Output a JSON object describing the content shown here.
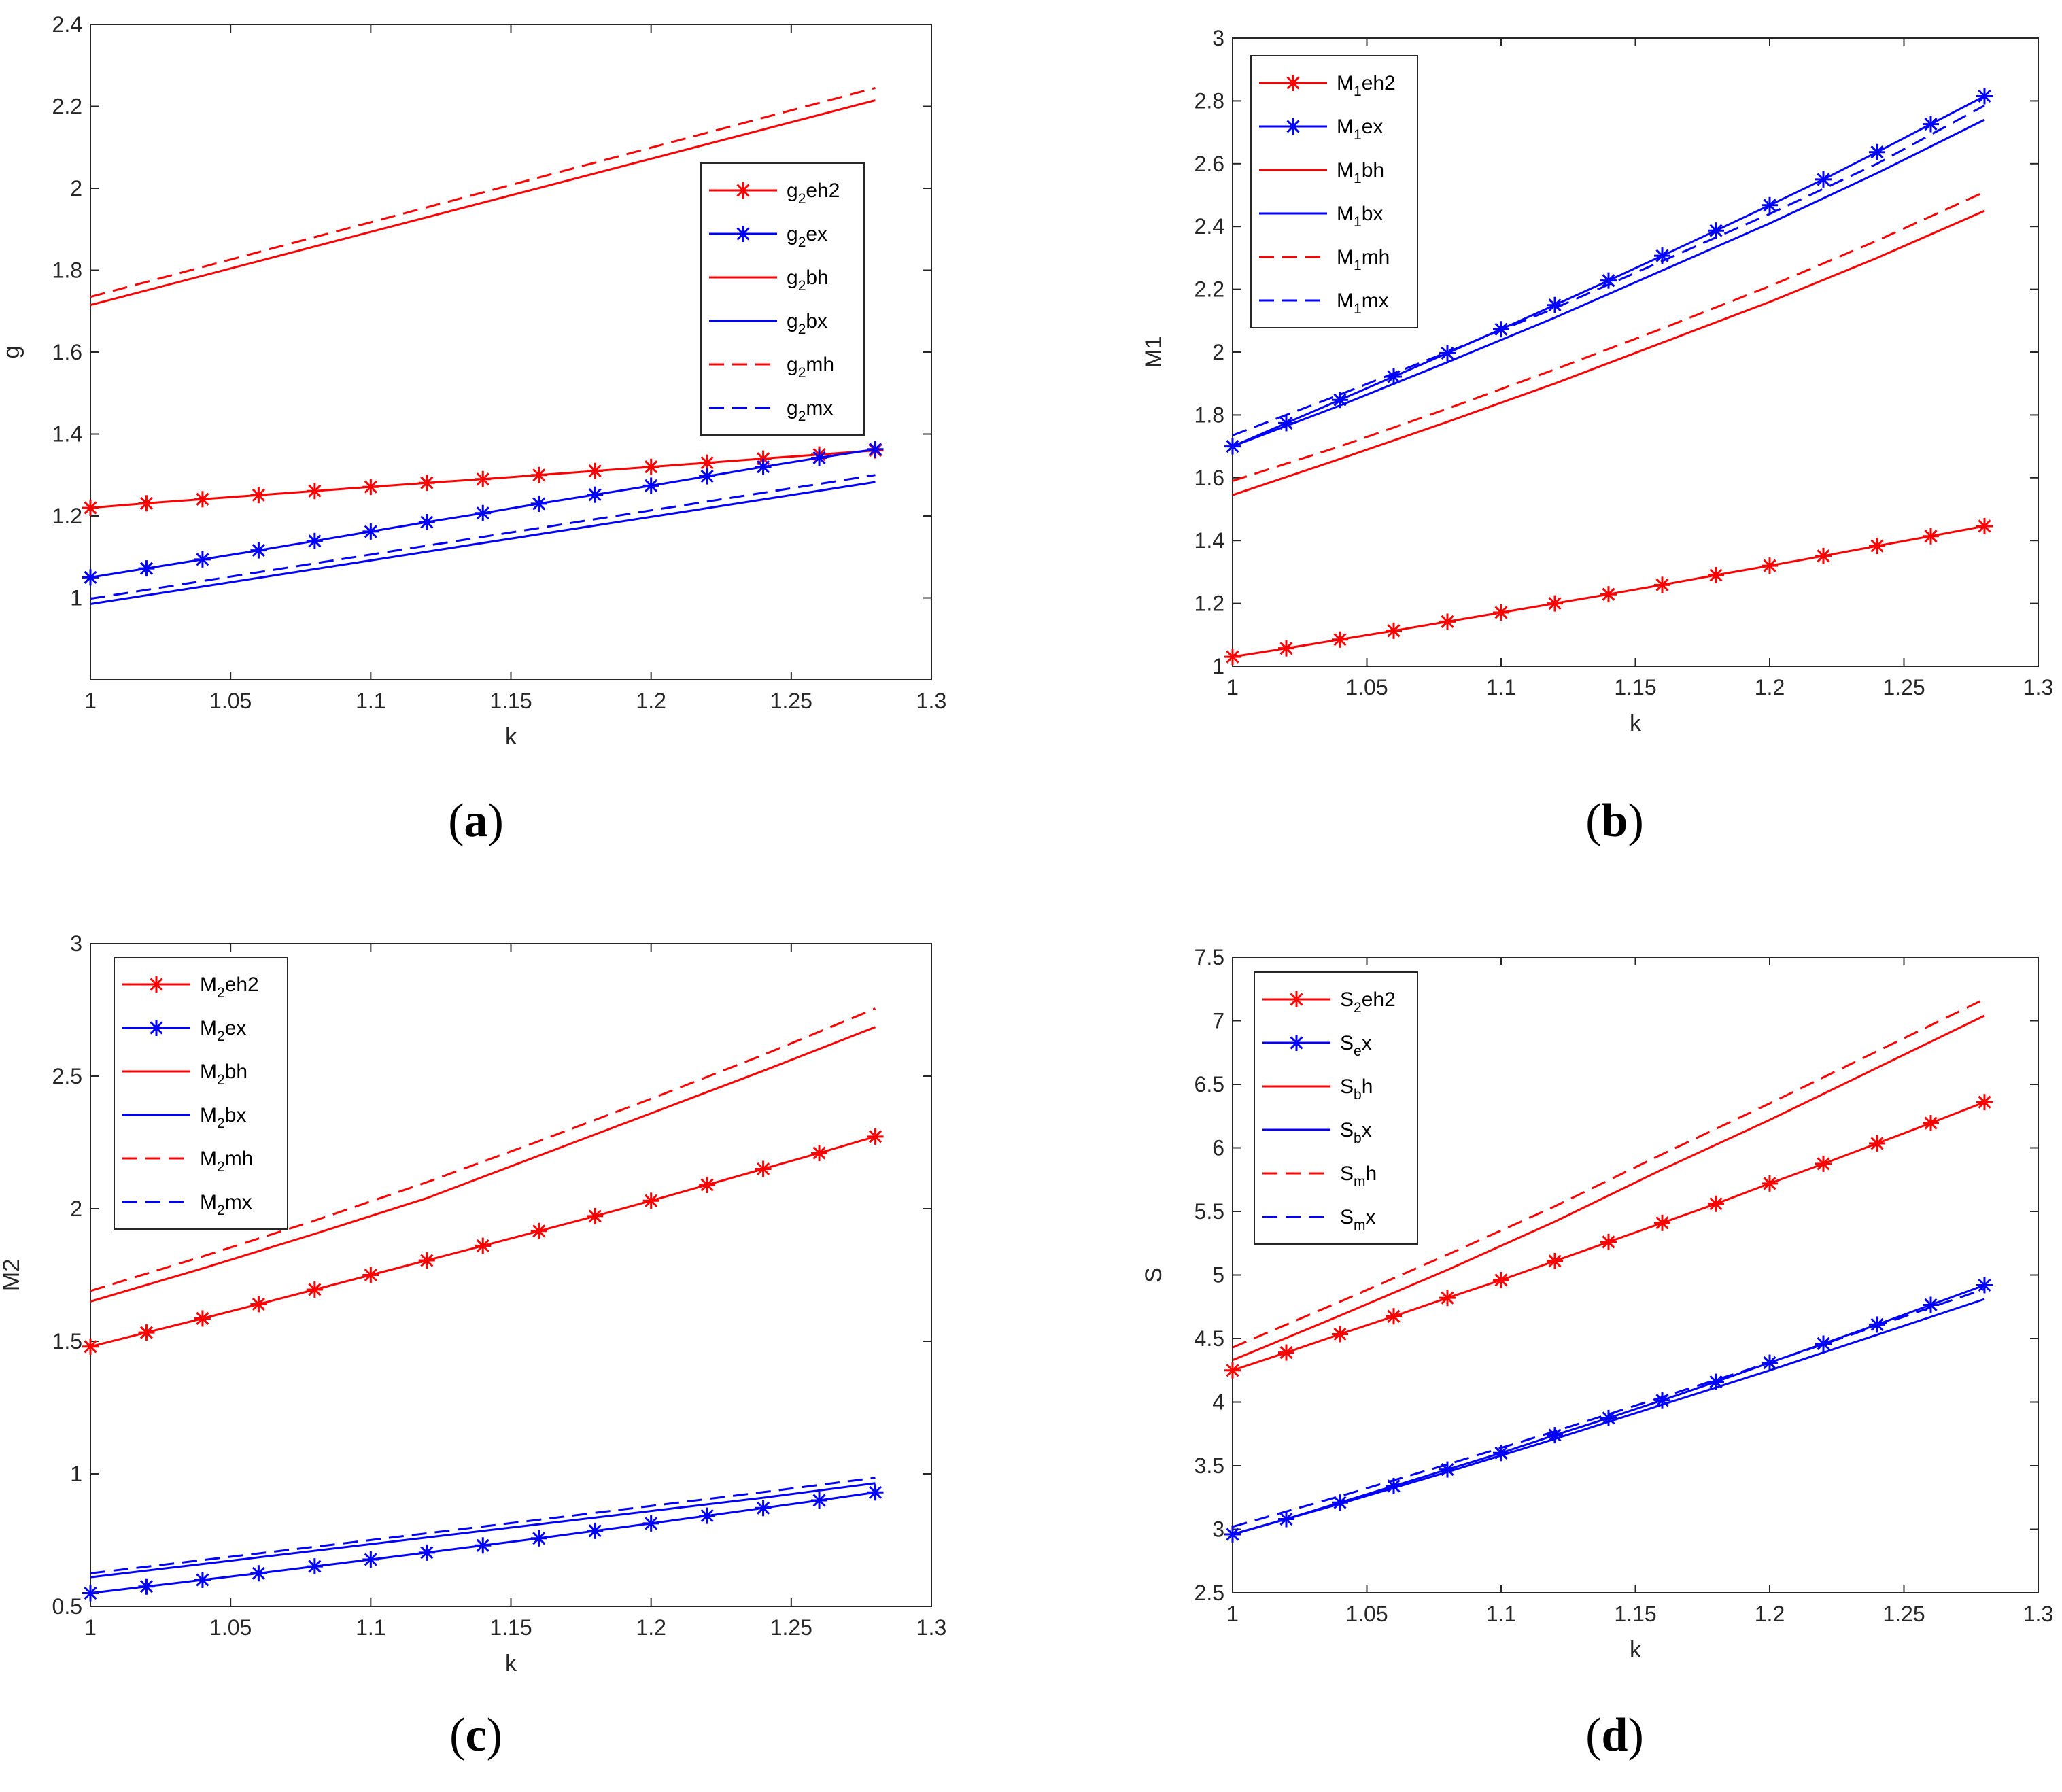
{
  "colors": {
    "red": "#ff0000",
    "blue": "#0000ff",
    "axis": "#262626"
  },
  "chart_data": [
    {
      "panel": "(a)",
      "caption": {
        "open": "(",
        "letter": "a",
        "close": ")"
      },
      "type": "line",
      "xlabel": "k",
      "ylabel": "g",
      "xlim": [
        1,
        1.3
      ],
      "ylim": [
        0.8,
        2.4
      ],
      "xticks": [
        1,
        1.05,
        1.1,
        1.15,
        1.2,
        1.25,
        1.3
      ],
      "xtick_labels": [
        "1",
        "1.05",
        "1.1",
        "1.15",
        "1.2",
        "1.25",
        "1.3"
      ],
      "yticks": [
        1,
        1.2,
        1.4,
        1.6,
        1.8,
        2,
        2.2,
        2.4
      ],
      "ytick_labels": [
        "1",
        "1.2",
        "1.4",
        "1.6",
        "1.8",
        "2",
        "2.2",
        "2.4"
      ],
      "legend_position": "center-right",
      "series": [
        {
          "name": "g2eh2",
          "legend": {
            "base": "g",
            "sub": "2",
            "suffix": "eh2"
          },
          "color": "red",
          "dash": "solid",
          "marker": "asterisk",
          "x": [
            1,
            1.02,
            1.04,
            1.06,
            1.08,
            1.1,
            1.12,
            1.14,
            1.16,
            1.18,
            1.2,
            1.22,
            1.24,
            1.26,
            1.28
          ],
          "y": [
            1.22,
            1.231,
            1.241,
            1.251,
            1.261,
            1.271,
            1.281,
            1.29,
            1.3,
            1.31,
            1.32,
            1.33,
            1.34,
            1.35,
            1.36
          ]
        },
        {
          "name": "g2ex",
          "legend": {
            "base": "g",
            "sub": "2",
            "suffix": "ex"
          },
          "color": "blue",
          "dash": "solid",
          "marker": "asterisk",
          "x": [
            1,
            1.02,
            1.04,
            1.06,
            1.08,
            1.1,
            1.12,
            1.14,
            1.16,
            1.18,
            1.2,
            1.22,
            1.24,
            1.26,
            1.28
          ],
          "y": [
            1.05,
            1.072,
            1.094,
            1.116,
            1.139,
            1.162,
            1.185,
            1.207,
            1.23,
            1.252,
            1.274,
            1.297,
            1.32,
            1.342,
            1.363
          ]
        },
        {
          "name": "g2bh",
          "legend": {
            "base": "g",
            "sub": "2",
            "suffix": "bh"
          },
          "color": "red",
          "dash": "solid",
          "marker": "none",
          "x": [
            1,
            1.28
          ],
          "y": [
            1.715,
            2.215
          ]
        },
        {
          "name": "g2bx",
          "legend": {
            "base": "g",
            "sub": "2",
            "suffix": "bx"
          },
          "color": "blue",
          "dash": "solid",
          "marker": "none",
          "x": [
            1,
            1.28
          ],
          "y": [
            0.985,
            1.283
          ]
        },
        {
          "name": "g2mh",
          "legend": {
            "base": "g",
            "sub": "2",
            "suffix": "mh"
          },
          "color": "red",
          "dash": "dashed",
          "marker": "none",
          "x": [
            1,
            1.28
          ],
          "y": [
            1.735,
            2.245
          ]
        },
        {
          "name": "g2mx",
          "legend": {
            "base": "g",
            "sub": "2",
            "suffix": "mx"
          },
          "color": "blue",
          "dash": "dashed",
          "marker": "none",
          "x": [
            1,
            1.28
          ],
          "y": [
            0.998,
            1.3
          ]
        }
      ]
    },
    {
      "panel": "(b)",
      "caption": {
        "open": "(",
        "letter": "b",
        "close": ")"
      },
      "type": "line",
      "xlabel": "k",
      "ylabel": "M1",
      "xlim": [
        1,
        1.3
      ],
      "ylim": [
        1,
        3
      ],
      "xticks": [
        1,
        1.05,
        1.1,
        1.15,
        1.2,
        1.25,
        1.3
      ],
      "xtick_labels": [
        "1",
        "1.05",
        "1.1",
        "1.15",
        "1.2",
        "1.25",
        "1.3"
      ],
      "yticks": [
        1,
        1.2,
        1.4,
        1.6,
        1.8,
        2,
        2.2,
        2.4,
        2.6,
        2.8,
        3
      ],
      "ytick_labels": [
        "1",
        "1.2",
        "1.4",
        "1.6",
        "1.8",
        "2",
        "2.2",
        "2.4",
        "2.6",
        "2.8",
        "3"
      ],
      "legend_position": "top-left",
      "series": [
        {
          "name": "M1eh2",
          "legend": {
            "base": "M",
            "sub": "1",
            "suffix": "eh2"
          },
          "color": "red",
          "dash": "solid",
          "marker": "asterisk",
          "x": [
            1,
            1.02,
            1.04,
            1.06,
            1.08,
            1.1,
            1.12,
            1.14,
            1.16,
            1.18,
            1.2,
            1.22,
            1.24,
            1.26,
            1.28
          ],
          "y": [
            1.03,
            1.057,
            1.085,
            1.113,
            1.142,
            1.171,
            1.2,
            1.229,
            1.259,
            1.29,
            1.32,
            1.351,
            1.383,
            1.414,
            1.446
          ]
        },
        {
          "name": "M1ex",
          "legend": {
            "base": "M",
            "sub": "1",
            "suffix": "ex"
          },
          "color": "blue",
          "dash": "solid",
          "marker": "asterisk",
          "x": [
            1,
            1.02,
            1.04,
            1.06,
            1.08,
            1.1,
            1.12,
            1.14,
            1.16,
            1.18,
            1.2,
            1.22,
            1.24,
            1.26,
            1.28
          ],
          "y": [
            1.7,
            1.774,
            1.848,
            1.922,
            1.997,
            2.073,
            2.15,
            2.228,
            2.307,
            2.387,
            2.468,
            2.55,
            2.637,
            2.726,
            2.815
          ]
        },
        {
          "name": "M1bh",
          "legend": {
            "base": "M",
            "sub": "1",
            "suffix": "bh"
          },
          "color": "red",
          "dash": "solid",
          "marker": "none",
          "x": [
            1,
            1.04,
            1.08,
            1.12,
            1.16,
            1.2,
            1.24,
            1.28
          ],
          "y": [
            1.545,
            1.66,
            1.778,
            1.9,
            2.03,
            2.16,
            2.3,
            2.45
          ]
        },
        {
          "name": "M1bx",
          "legend": {
            "base": "M",
            "sub": "1",
            "suffix": "bx"
          },
          "color": "blue",
          "dash": "solid",
          "marker": "none",
          "x": [
            1,
            1.04,
            1.08,
            1.12,
            1.16,
            1.2,
            1.24,
            1.28
          ],
          "y": [
            1.7,
            1.83,
            1.968,
            2.11,
            2.26,
            2.41,
            2.57,
            2.74
          ]
        },
        {
          "name": "M1mh",
          "legend": {
            "base": "M",
            "sub": "1",
            "suffix": "mh"
          },
          "color": "red",
          "dash": "dashed",
          "marker": "none",
          "x": [
            1,
            1.04,
            1.08,
            1.12,
            1.16,
            1.2,
            1.24,
            1.28
          ],
          "y": [
            1.59,
            1.7,
            1.82,
            1.945,
            2.075,
            2.21,
            2.355,
            2.51
          ]
        },
        {
          "name": "M1mx",
          "legend": {
            "base": "M",
            "sub": "1",
            "suffix": "mx"
          },
          "color": "blue",
          "dash": "dashed",
          "marker": "none",
          "x": [
            1,
            1.04,
            1.08,
            1.12,
            1.16,
            1.2,
            1.24,
            1.28
          ],
          "y": [
            1.735,
            1.865,
            2.0,
            2.14,
            2.29,
            2.44,
            2.6,
            2.785
          ]
        }
      ]
    },
    {
      "panel": "(c)",
      "caption": {
        "open": "(",
        "letter": "c",
        "close": ")"
      },
      "type": "line",
      "xlabel": "k",
      "ylabel": "M2",
      "xlim": [
        1,
        1.3
      ],
      "ylim": [
        0.5,
        3
      ],
      "xticks": [
        1,
        1.05,
        1.1,
        1.15,
        1.2,
        1.25,
        1.3
      ],
      "xtick_labels": [
        "1",
        "1.05",
        "1.1",
        "1.15",
        "1.2",
        "1.25",
        "1.3"
      ],
      "yticks": [
        0.5,
        1,
        1.5,
        2,
        2.5,
        3
      ],
      "ytick_labels": [
        "0.5",
        "1",
        "1.5",
        "2",
        "2.5",
        "3"
      ],
      "legend_position": "top-left",
      "series": [
        {
          "name": "M2eh2",
          "legend": {
            "base": "M",
            "sub": "2",
            "suffix": "eh2"
          },
          "color": "red",
          "dash": "solid",
          "marker": "asterisk",
          "x": [
            1,
            1.02,
            1.04,
            1.06,
            1.08,
            1.1,
            1.12,
            1.14,
            1.16,
            1.18,
            1.2,
            1.22,
            1.24,
            1.26,
            1.28
          ],
          "y": [
            1.48,
            1.533,
            1.586,
            1.64,
            1.695,
            1.75,
            1.805,
            1.86,
            1.916,
            1.972,
            2.03,
            2.09,
            2.15,
            2.21,
            2.272
          ]
        },
        {
          "name": "M2ex",
          "legend": {
            "base": "M",
            "sub": "2",
            "suffix": "ex"
          },
          "color": "blue",
          "dash": "solid",
          "marker": "asterisk",
          "x": [
            1,
            1.02,
            1.04,
            1.06,
            1.08,
            1.1,
            1.12,
            1.14,
            1.16,
            1.18,
            1.2,
            1.22,
            1.24,
            1.26,
            1.28
          ],
          "y": [
            0.55,
            0.575,
            0.6,
            0.625,
            0.651,
            0.677,
            0.703,
            0.73,
            0.757,
            0.785,
            0.813,
            0.842,
            0.871,
            0.9,
            0.93
          ]
        },
        {
          "name": "M2bh",
          "legend": {
            "base": "M",
            "sub": "2",
            "suffix": "bh"
          },
          "color": "red",
          "dash": "solid",
          "marker": "none",
          "x": [
            1,
            1.04,
            1.08,
            1.12,
            1.16,
            1.2,
            1.24,
            1.28
          ],
          "y": [
            1.65,
            1.775,
            1.905,
            2.04,
            2.2,
            2.36,
            2.52,
            2.685
          ]
        },
        {
          "name": "M2bx",
          "legend": {
            "base": "M",
            "sub": "2",
            "suffix": "bx"
          },
          "color": "blue",
          "dash": "solid",
          "marker": "none",
          "x": [
            1,
            1.04,
            1.08,
            1.12,
            1.16,
            1.2,
            1.24,
            1.28
          ],
          "y": [
            0.61,
            0.66,
            0.71,
            0.76,
            0.81,
            0.86,
            0.91,
            0.965
          ]
        },
        {
          "name": "M2mh",
          "legend": {
            "base": "M",
            "sub": "2",
            "suffix": "mh"
          },
          "color": "red",
          "dash": "dashed",
          "marker": "none",
          "x": [
            1,
            1.04,
            1.08,
            1.12,
            1.16,
            1.2,
            1.24,
            1.28
          ],
          "y": [
            1.69,
            1.82,
            1.955,
            2.1,
            2.255,
            2.415,
            2.58,
            2.755
          ]
        },
        {
          "name": "M2mx",
          "legend": {
            "base": "M",
            "sub": "2",
            "suffix": "mx"
          },
          "color": "blue",
          "dash": "dashed",
          "marker": "none",
          "x": [
            1,
            1.04,
            1.08,
            1.12,
            1.16,
            1.2,
            1.24,
            1.28
          ],
          "y": [
            0.625,
            0.675,
            0.725,
            0.776,
            0.827,
            0.879,
            0.931,
            0.985
          ]
        }
      ]
    },
    {
      "panel": "(d)",
      "caption": {
        "open": "(",
        "letter": "d",
        "close": ")"
      },
      "type": "line",
      "xlabel": "k",
      "ylabel": "S",
      "xlim": [
        1,
        1.3
      ],
      "ylim": [
        2.5,
        7.5
      ],
      "xticks": [
        1,
        1.05,
        1.1,
        1.15,
        1.2,
        1.25,
        1.3
      ],
      "xtick_labels": [
        "1",
        "1.05",
        "1.1",
        "1.15",
        "1.2",
        "1.25",
        "1.3"
      ],
      "yticks": [
        2.5,
        3,
        3.5,
        4,
        4.5,
        5,
        5.5,
        6,
        6.5,
        7,
        7.5
      ],
      "ytick_labels": [
        "2.5",
        "3",
        "3.5",
        "4",
        "4.5",
        "5",
        "5.5",
        "6",
        "6.5",
        "7",
        "7.5"
      ],
      "legend_position": "top-left",
      "series": [
        {
          "name": "S2eh2",
          "legend": {
            "base": "S",
            "sub": "2",
            "suffix": "eh2"
          },
          "color": "red",
          "dash": "solid",
          "marker": "asterisk",
          "x": [
            1,
            1.02,
            1.04,
            1.06,
            1.08,
            1.1,
            1.12,
            1.14,
            1.16,
            1.18,
            1.2,
            1.22,
            1.24,
            1.26,
            1.28
          ],
          "y": [
            4.25,
            4.39,
            4.535,
            4.675,
            4.82,
            4.96,
            5.11,
            5.26,
            5.41,
            5.56,
            5.72,
            5.875,
            6.035,
            6.195,
            6.36
          ]
        },
        {
          "name": "Sex",
          "legend": {
            "base": "S",
            "sub": "e",
            "suffix": "x"
          },
          "color": "blue",
          "dash": "solid",
          "marker": "asterisk",
          "x": [
            1,
            1.02,
            1.04,
            1.06,
            1.08,
            1.1,
            1.12,
            1.14,
            1.16,
            1.18,
            1.2,
            1.22,
            1.24,
            1.26,
            1.28
          ],
          "y": [
            2.96,
            3.08,
            3.21,
            3.34,
            3.47,
            3.6,
            3.74,
            3.875,
            4.015,
            4.16,
            4.31,
            4.46,
            4.61,
            4.765,
            4.92
          ]
        },
        {
          "name": "Sbh",
          "legend": {
            "base": "S",
            "sub": "b",
            "suffix": "h"
          },
          "color": "red",
          "dash": "solid",
          "marker": "none",
          "x": [
            1,
            1.04,
            1.08,
            1.12,
            1.16,
            1.2,
            1.24,
            1.28
          ],
          "y": [
            4.33,
            4.68,
            5.04,
            5.42,
            5.83,
            6.22,
            6.63,
            7.04
          ]
        },
        {
          "name": "Sbx",
          "legend": {
            "base": "S",
            "sub": "b",
            "suffix": "x"
          },
          "color": "blue",
          "dash": "solid",
          "marker": "none",
          "x": [
            1,
            1.04,
            1.08,
            1.12,
            1.16,
            1.2,
            1.24,
            1.28
          ],
          "y": [
            2.96,
            3.2,
            3.45,
            3.71,
            3.98,
            4.25,
            4.53,
            4.81
          ]
        },
        {
          "name": "Smh",
          "legend": {
            "base": "S",
            "sub": "m",
            "suffix": "h"
          },
          "color": "red",
          "dash": "dashed",
          "marker": "none",
          "x": [
            1,
            1.04,
            1.08,
            1.12,
            1.16,
            1.2,
            1.24,
            1.28
          ],
          "y": [
            4.43,
            4.79,
            5.16,
            5.54,
            5.95,
            6.35,
            6.76,
            7.17
          ]
        },
        {
          "name": "Smx",
          "legend": {
            "base": "S",
            "sub": "m",
            "suffix": "x"
          },
          "color": "blue",
          "dash": "dashed",
          "marker": "none",
          "x": [
            1,
            1.04,
            1.08,
            1.12,
            1.16,
            1.2,
            1.24,
            1.28
          ],
          "y": [
            3.02,
            3.26,
            3.51,
            3.77,
            4.04,
            4.31,
            4.6,
            4.89
          ]
        }
      ]
    }
  ]
}
